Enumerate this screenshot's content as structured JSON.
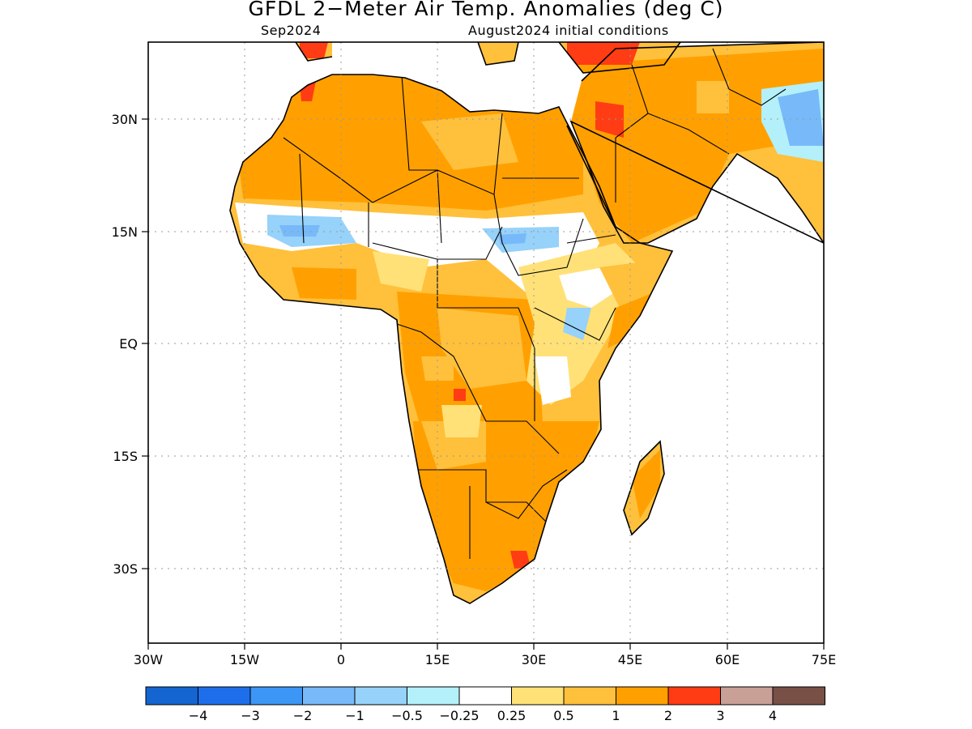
{
  "title": "GFDL 2−Meter Air Temp. Anomalies (deg C)",
  "subtitle_left": "Sep2024",
  "subtitle_right": "August2024 initial conditions",
  "map": {
    "lon_range": [
      -30,
      75
    ],
    "lat_range": [
      -40,
      41.5
    ],
    "lon_ticks": [
      "30W",
      "15W",
      "0",
      "15E",
      "30E",
      "45E",
      "60E",
      "75E"
    ],
    "lat_ticks": [
      "30N",
      "15N",
      "EQ",
      "15S",
      "30S"
    ],
    "gridlines": "dotted"
  },
  "colorbar": {
    "colors": [
      "#1464d2",
      "#1e6eeb",
      "#3c96f5",
      "#78b9fa",
      "#96d2fa",
      "#b4f0fa",
      "#ffffff",
      "#ffe178",
      "#ffc03c",
      "#ffa000",
      "#ff3c14",
      "#c8a096",
      "#785046"
    ],
    "labels": [
      "−4",
      "−3",
      "−2",
      "−1",
      "−0.5",
      "−0.25",
      "0.25",
      "0.5",
      "1",
      "2",
      "3",
      "4"
    ]
  }
}
